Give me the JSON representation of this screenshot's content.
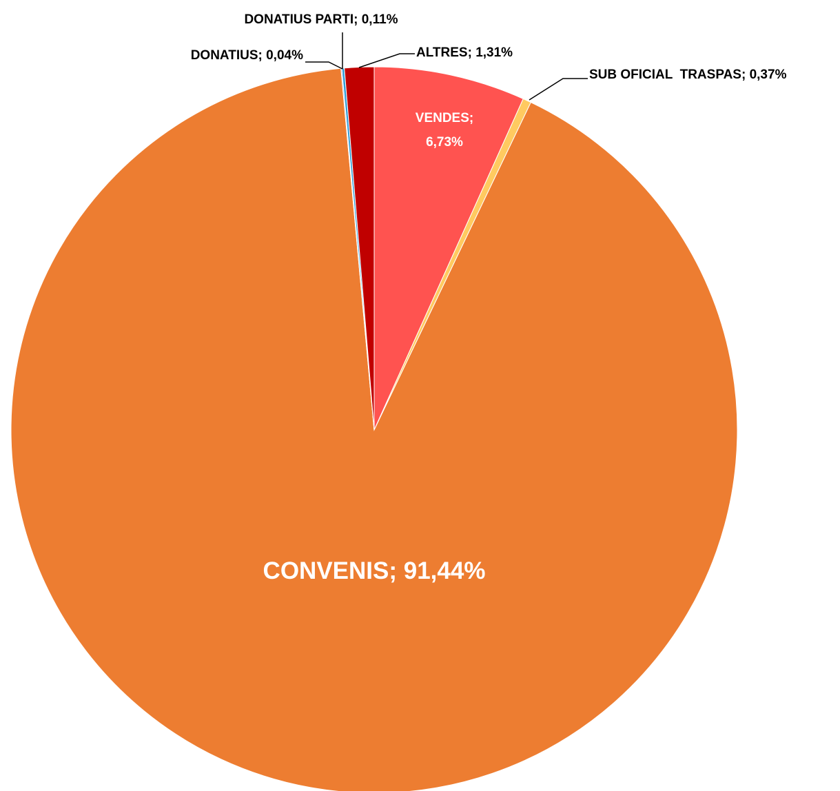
{
  "chart_data": {
    "type": "pie",
    "start_angle_deg": 0,
    "direction": "clockwise",
    "slices": [
      {
        "name": "VENDES",
        "value": 6.73,
        "label": "VENDES;|6,73%",
        "color": "#FF5350",
        "label_color": "#ffffff",
        "label_inside": true,
        "leader": false
      },
      {
        "name": "SUB OFICIAL TRASPAS",
        "value": 0.37,
        "label": "SUB OFICIAL  TRASPAS; 0,37%",
        "color": "#FFCA60",
        "label_color": "#000000",
        "label_inside": false,
        "leader": true
      },
      {
        "name": "CONVENIS",
        "value": 91.44,
        "label": "CONVENIS; 91,44%",
        "color": "#ED7D31",
        "label_color": "#ffffff",
        "label_inside": true,
        "leader": false
      },
      {
        "name": "DONATIUS",
        "value": 0.04,
        "label": "DONATIUS; 0,04%",
        "color": "#4472C4",
        "label_color": "#000000",
        "label_inside": false,
        "leader": true
      },
      {
        "name": "DONATIUS PARTI",
        "value": 0.11,
        "label": "DONATIUS PARTI; 0,11%",
        "color": "#2E9BD6",
        "label_color": "#000000",
        "label_inside": false,
        "leader": true
      },
      {
        "name": "ALTRES",
        "value": 1.31,
        "label": "ALTRES; 1,31%",
        "color": "#C00000",
        "label_color": "#000000",
        "label_inside": false,
        "leader": true
      }
    ]
  }
}
